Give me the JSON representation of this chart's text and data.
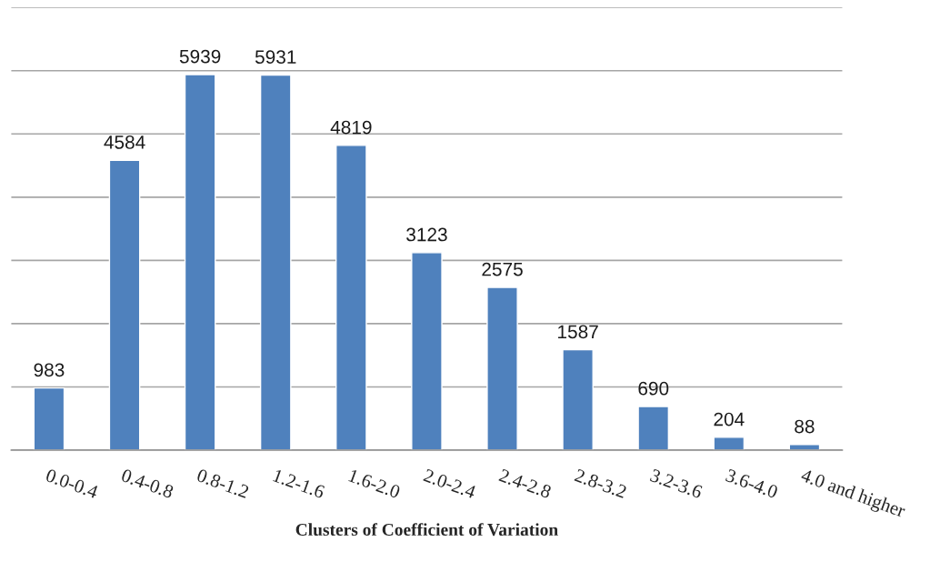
{
  "chart_data": {
    "type": "bar",
    "xlabel": "Clusters of Coefficient of Variation",
    "categories": [
      "0.0-0.4",
      "0.4-0.8",
      "0.8-1.2",
      "1.2-1.6",
      "1.6-2.0",
      "2.0-2.4",
      "2.4-2.8",
      "2.8-3.2",
      "3.2-3.6",
      "3.6-4.0",
      "4.0 and higher"
    ],
    "values": [
      983,
      4584,
      5939,
      5931,
      4819,
      3123,
      2575,
      1587,
      690,
      204,
      88
    ],
    "color": "#4f81bd",
    "ylim": [
      0,
      7000
    ],
    "yticks": [
      {
        "value": 0,
        "label": null
      },
      {
        "value": 1000,
        "label": null
      },
      {
        "value": 2000,
        "label": null
      },
      {
        "value": 3000,
        "label": null
      },
      {
        "value": 4000,
        "label": null
      },
      {
        "value": 5000,
        "label": null
      },
      {
        "value": 6000,
        "label": null
      },
      {
        "value": 7000,
        "label": null
      }
    ],
    "tick_labels": "x",
    "grid": "y",
    "data_labels": true
  }
}
